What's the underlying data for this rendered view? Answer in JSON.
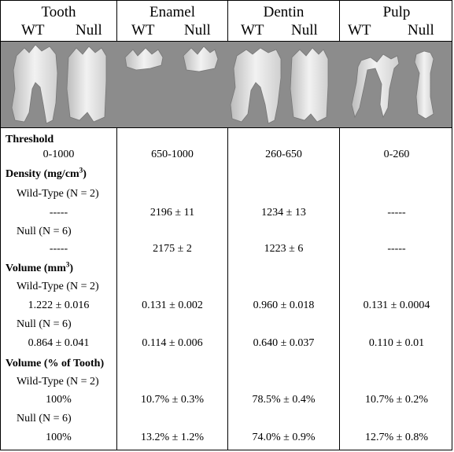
{
  "header": {
    "columns": [
      {
        "title": "Tooth",
        "sub_left": "WT",
        "sub_right": "Null"
      },
      {
        "title": "Enamel",
        "sub_left": "WT",
        "sub_right": "Null"
      },
      {
        "title": "Dentin",
        "sub_left": "WT",
        "sub_right": "Null"
      },
      {
        "title": "Pulp",
        "sub_left": "WT",
        "sub_right": "Null"
      }
    ]
  },
  "sections": {
    "threshold": {
      "label": "Threshold",
      "tooth": "0-1000",
      "enamel": "650-1000",
      "dentin": "260-650",
      "pulp": "0-260"
    },
    "density": {
      "label_main": "Density (mg/cm",
      "label_sup": "3",
      "label_end": ")",
      "wt_label": "Wild-Type (N = 2)",
      "wt": {
        "tooth": "-----",
        "enamel": "2196 ± 11",
        "dentin": "1234 ± 13",
        "pulp": "-----"
      },
      "null_label": "Null (N = 6)",
      "null": {
        "tooth": "-----",
        "enamel": "2175 ± 2",
        "dentin": "1223 ± 6",
        "pulp": "-----"
      }
    },
    "volume": {
      "label_main": "Volume (mm",
      "label_sup": "3",
      "label_end": ")",
      "wt_label": "Wild-Type (N = 2)",
      "wt": {
        "tooth": "1.222 ± 0.016",
        "enamel": "0.131 ± 0.002",
        "dentin": "0.960 ± 0.018",
        "pulp": "0.131 ±  0.0004"
      },
      "null_label": "Null (N = 6)",
      "null": {
        "tooth": "0.864 ± 0.041",
        "enamel": "0.114 ± 0.006",
        "dentin": "0.640 ± 0.037",
        "pulp": "0.110 ± 0.01"
      }
    },
    "volume_pct": {
      "label": "Volume (% of Tooth)",
      "wt_label": "Wild-Type (N = 2)",
      "wt": {
        "tooth": "100%",
        "enamel": "10.7% ±  0.3%",
        "dentin": "78.5% ± 0.4%",
        "pulp": "10.7% ± 0.2%"
      },
      "null_label": "Null (N = 6)",
      "null": {
        "tooth": "100%",
        "enamel": "13.2% ± 1.2%",
        "dentin": "74.0% ± 0.9%",
        "pulp": "12.7% ± 0.8%"
      }
    }
  }
}
